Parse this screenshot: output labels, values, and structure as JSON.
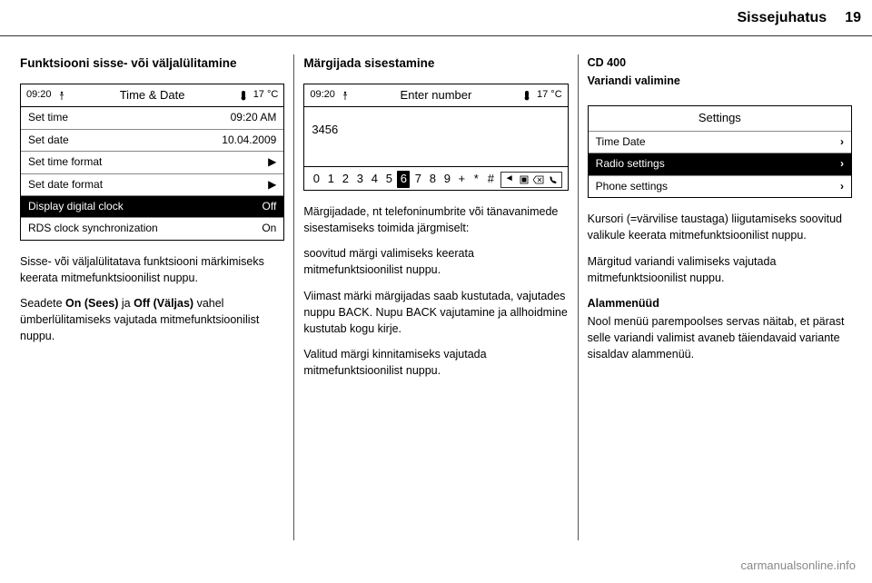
{
  "header": {
    "title": "Sissejuhatus",
    "page": "19"
  },
  "col1": {
    "heading": "Funktsiooni sisse- või väljalülitamine",
    "screen": {
      "time": "09:20",
      "title": "Time & Date",
      "temp": "17 °C",
      "rows": [
        {
          "label": "Set time",
          "value": "09:20 AM",
          "hl": false,
          "arrow": false
        },
        {
          "label": "Set date",
          "value": "10.04.2009",
          "hl": false,
          "arrow": false
        },
        {
          "label": "Set time format",
          "value": "",
          "hl": false,
          "arrow": true
        },
        {
          "label": "Set date format",
          "value": "",
          "hl": false,
          "arrow": true
        },
        {
          "label": "Display digital clock",
          "value": "Off",
          "hl": true,
          "arrow": false
        },
        {
          "label": "RDS clock synchronization",
          "value": "On",
          "hl": false,
          "arrow": false
        }
      ]
    },
    "p1": "Sisse- või väljalülitatava funktsiooni märkimiseks keerata mitmefunktsioonilist nuppu.",
    "p2_a": "Seadete ",
    "p2_b": "On (Sees)",
    "p2_c": " ja ",
    "p2_d": "Off (Väljas)",
    "p2_e": " vahel ümberlülitamiseks vajutada mitmefunktsioonilist nuppu."
  },
  "col2": {
    "heading": "Märgijada sisestamine",
    "screen": {
      "time": "09:20",
      "title": "Enter number",
      "temp": "17 °C",
      "entered": "3456",
      "digits": [
        "0",
        "1",
        "2",
        "3",
        "4",
        "5",
        "6",
        "7",
        "8",
        "9",
        "+",
        "*",
        "#"
      ],
      "hl_index": 6
    },
    "p1": "Märgijadade, nt telefoninumbrite või tänavanimede sisestamiseks toimida järgmiselt:",
    "p2": "soovitud märgi valimiseks keerata mitmefunktsioonilist nuppu.",
    "p3": "Viimast märki märgijadas saab kustutada, vajutades nuppu BACK. Nupu BACK vajutamine ja allhoidmine kustutab kogu kirje.",
    "p4": "Valitud märgi kinnitamiseks vajutada mitmefunktsioonilist nuppu."
  },
  "col3": {
    "line1": "CD 400",
    "line2": "Variandi valimine",
    "screen": {
      "title": "Settings",
      "rows": [
        {
          "label": "Time Date",
          "hl": false
        },
        {
          "label": "Radio settings",
          "hl": true
        },
        {
          "label": "Phone settings",
          "hl": false
        }
      ]
    },
    "p1": "Kursori (=värvilise taustaga) liigutamiseks soovitud valikule keerata mitmefunktsioonilist nuppu.",
    "p2": "Märgitud variandi valimiseks vajutada mitmefunktsioonilist nuppu.",
    "sub": "Alammenüüd",
    "p3": "Nool menüü parempoolses servas näitab, et pärast selle variandi valimist avaneb täiendavaid variante sisaldav alammenüü."
  },
  "watermark": "carmanualsonline.info"
}
